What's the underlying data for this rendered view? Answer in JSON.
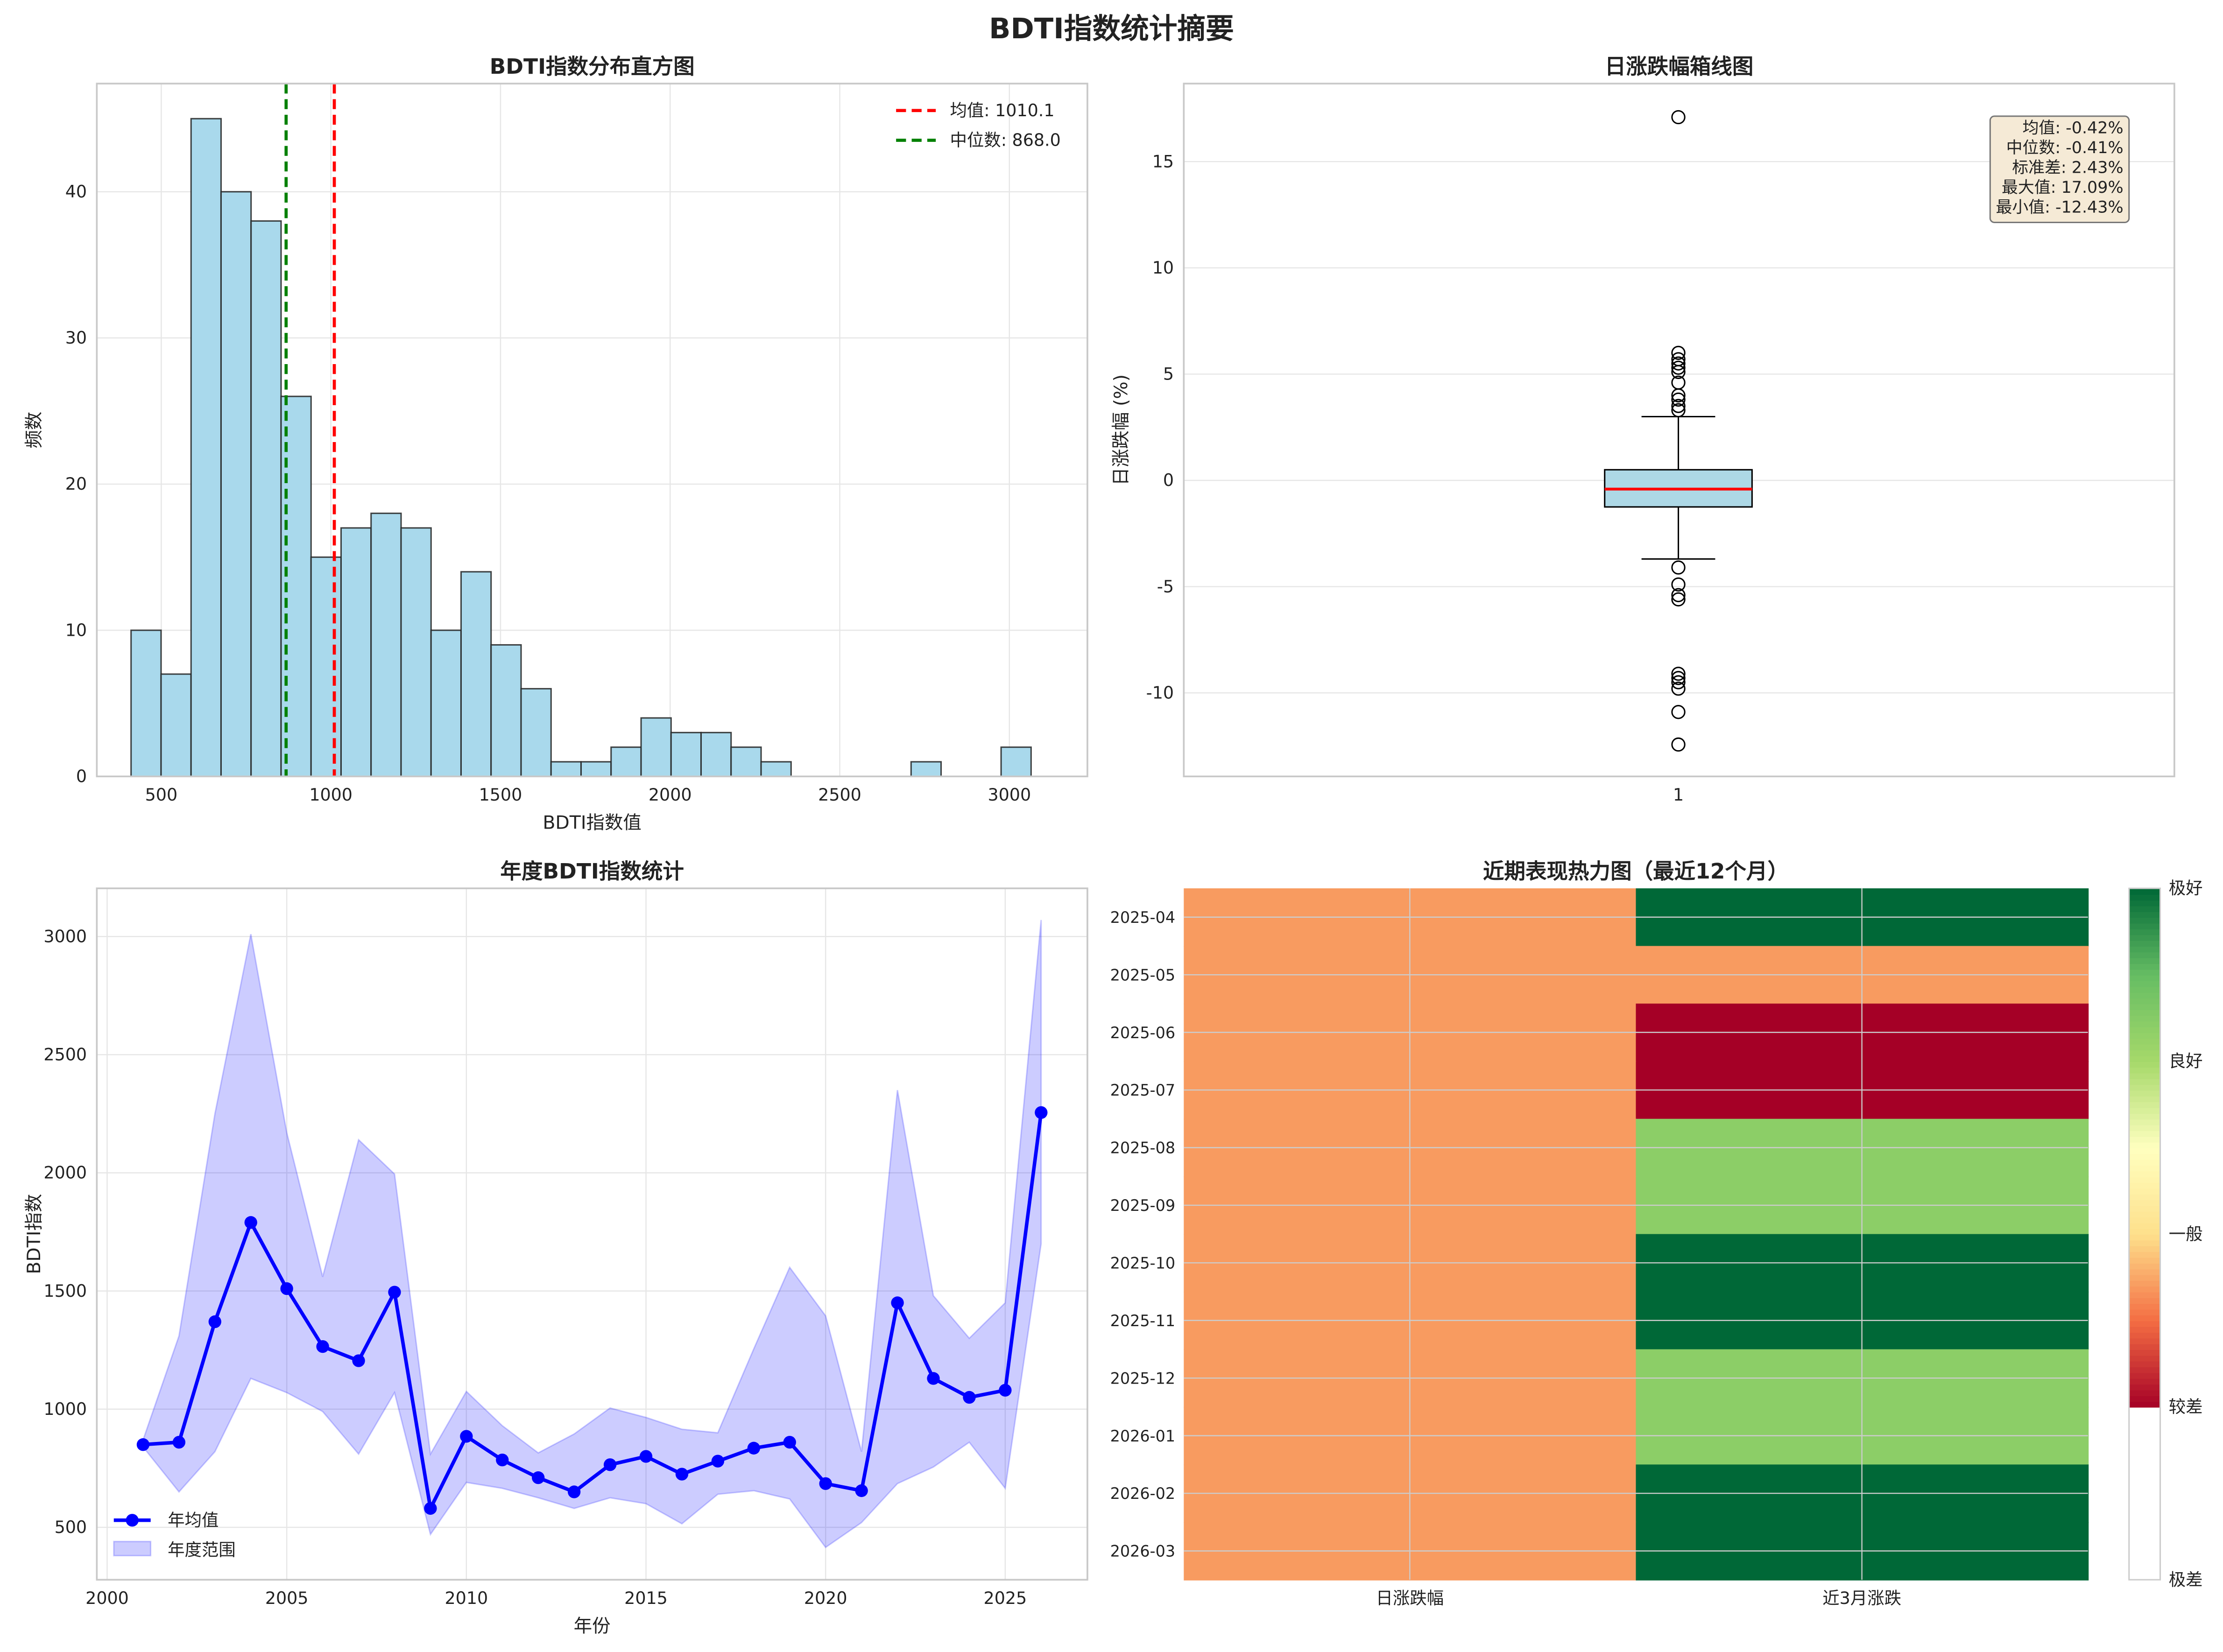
{
  "figure_title": "BDTI指数统计摘要",
  "chart_data": [
    {
      "type": "bar",
      "subtype": "histogram",
      "title": "BDTI指数分布直方图",
      "xlabel": "BDTI指数值",
      "ylabel": "频数",
      "bin_range": [
        411,
        3064
      ],
      "counts": [
        10,
        7,
        45,
        40,
        38,
        26,
        15,
        17,
        18,
        17,
        10,
        14,
        9,
        6,
        1,
        1,
        2,
        4,
        3,
        3,
        2,
        1,
        0,
        0,
        0,
        0,
        1,
        0,
        0,
        2
      ],
      "xlim": [
        310,
        3230
      ],
      "ylim": [
        0,
        47.4
      ],
      "xticks": [
        500,
        1000,
        1500,
        2000,
        2500,
        3000
      ],
      "yticks": [
        0,
        10,
        20,
        30,
        40
      ],
      "bar_color": "#a9d9ec",
      "vlines": [
        {
          "label": "均值: 1010.1",
          "value": 1010.1,
          "color": "#ff0000"
        },
        {
          "label": "中位数: 868.0",
          "value": 868.0,
          "color": "#008000"
        }
      ],
      "legend": "top-right",
      "grid": true
    },
    {
      "type": "box",
      "title": "日涨跌幅箱线图",
      "ylabel": "日涨跌幅 (%)",
      "xticks": [
        "1"
      ],
      "ylim": [
        -13.93,
        18.67
      ],
      "yticks": [
        -10,
        -5,
        0,
        5,
        10,
        15
      ],
      "q1": -1.25,
      "median": -0.41,
      "q3": 0.5,
      "whisker_low": -3.7,
      "whisker_high": 3.0,
      "outliers": [
        17.09,
        6.0,
        5.7,
        5.5,
        5.3,
        5.1,
        4.6,
        4.0,
        3.8,
        3.5,
        3.3,
        -4.1,
        -4.9,
        -5.4,
        -5.6,
        -9.1,
        -9.3,
        -9.5,
        -9.8,
        -10.9,
        -12.43
      ],
      "box_color": "#add8e6",
      "median_color": "#ff0000",
      "stats_box": [
        "均值: -0.42%",
        "中位数: -0.41%",
        "标准差: 2.43%",
        "最大值: 17.09%",
        "最小值: -12.43%"
      ],
      "grid": true
    },
    {
      "type": "line",
      "title": "年度BDTI指数统计",
      "xlabel": "年份",
      "ylabel": "BDTI指数",
      "xlim": [
        2000,
        2027.2
      ],
      "ylim": [
        278,
        3204
      ],
      "xticks": [
        2000,
        2005,
        2010,
        2015,
        2020,
        2025
      ],
      "yticks": [
        500,
        1000,
        1500,
        2000,
        2500,
        3000
      ],
      "x": [
        2001,
        2002,
        2003,
        2004,
        2005,
        2006,
        2007,
        2008,
        2009,
        2010,
        2011,
        2012,
        2013,
        2014,
        2015,
        2016,
        2017,
        2018,
        2019,
        2020,
        2021,
        2022,
        2023,
        2024,
        2025,
        2026
      ],
      "series": [
        {
          "name": "年均值",
          "color": "#0000ff",
          "values": [
            850,
            860,
            1370,
            1790,
            1510,
            1265,
            1205,
            1495,
            580,
            885,
            785,
            710,
            650,
            765,
            800,
            725,
            780,
            835,
            860,
            685,
            655,
            1450,
            1130,
            1050,
            1080,
            2255
          ]
        },
        {
          "name": "年度范围",
          "color": "#7b7bff",
          "type": "band",
          "min": [
            840,
            650,
            820,
            1130,
            1070,
            990,
            810,
            1070,
            470,
            690,
            665,
            625,
            580,
            625,
            600,
            515,
            640,
            655,
            620,
            415,
            520,
            685,
            755,
            860,
            665,
            1700
          ],
          "max": [
            870,
            1310,
            2250,
            3010,
            2170,
            1560,
            2140,
            1995,
            810,
            1075,
            930,
            815,
            895,
            1005,
            965,
            915,
            900,
            1255,
            1600,
            1395,
            820,
            2350,
            1480,
            1300,
            1450,
            3070
          ]
        }
      ],
      "legend": "bottom-left",
      "grid": true
    },
    {
      "type": "heatmap",
      "title": "近期表现热力图（最近12个月）",
      "columns": [
        "日涨跌幅",
        "近3月涨跌"
      ],
      "rows": [
        "2025-04",
        "2025-05",
        "2025-06",
        "2025-07",
        "2025-08",
        "2025-09",
        "2025-10",
        "2025-11",
        "2025-12",
        "2026-01",
        "2026-02",
        "2026-03"
      ],
      "values": [
        [
          1.7,
          4
        ],
        [
          1.7,
          1.7
        ],
        [
          1.7,
          1
        ],
        [
          1.7,
          1
        ],
        [
          1.7,
          3.2
        ],
        [
          1.7,
          3.2
        ],
        [
          1.7,
          4
        ],
        [
          1.7,
          4
        ],
        [
          1.7,
          3.2
        ],
        [
          1.7,
          3.2
        ],
        [
          1.7,
          4
        ],
        [
          1.7,
          4
        ]
      ],
      "colorbar": {
        "range": [
          0,
          4
        ],
        "ticks": [
          0,
          1,
          2,
          3,
          4
        ],
        "labels": [
          "极差",
          "较差",
          "一般",
          "良好",
          "极好"
        ],
        "colormap": "RdYlGn"
      }
    }
  ]
}
